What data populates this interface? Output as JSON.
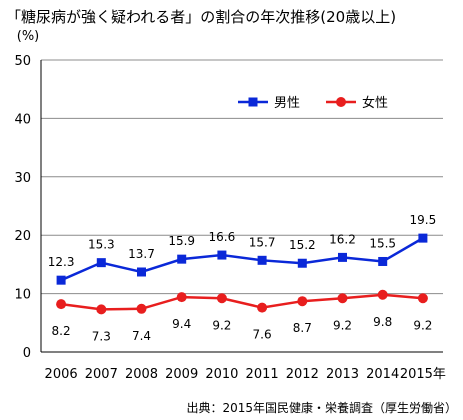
{
  "chart_data": {
    "type": "line",
    "title": "「糖尿病が強く疑われる者」の割合の年次推移(20歳以上)",
    "ylabel": "(%)",
    "xlabel": "",
    "categories": [
      "2006",
      "2007",
      "2008",
      "2009",
      "2010",
      "2011",
      "2012",
      "2013",
      "2014",
      "2015年"
    ],
    "ylim": [
      0,
      50
    ],
    "yticks": [
      0,
      10,
      20,
      30,
      40,
      50
    ],
    "grid": true,
    "legend_position": "top-right",
    "series": [
      {
        "name": "男性",
        "color": "#0a28d8",
        "marker": "square",
        "values": [
          12.3,
          15.3,
          13.7,
          15.9,
          16.6,
          15.7,
          15.2,
          16.2,
          15.5,
          19.5
        ],
        "label_position": "above"
      },
      {
        "name": "女性",
        "color": "#e81e1e",
        "marker": "circle",
        "values": [
          8.2,
          7.3,
          7.4,
          9.4,
          9.2,
          7.6,
          8.7,
          9.2,
          9.8,
          9.2
        ],
        "label_position": "below"
      }
    ],
    "source": "出典：2015年国民健康・栄養調査（厚生労働省）"
  }
}
